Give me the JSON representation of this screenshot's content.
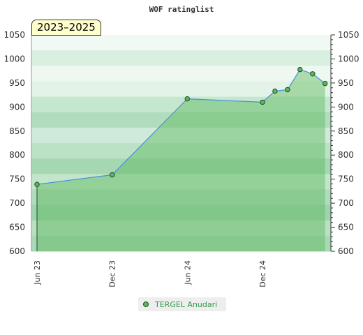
{
  "chart_data": {
    "type": "area",
    "title": "WOF ratinglist",
    "period_label": "2023–2025",
    "ylim": [
      600,
      1050
    ],
    "yticks": [
      "600",
      "650",
      "700",
      "750",
      "800",
      "850",
      "900",
      "950",
      "1000",
      "1050"
    ],
    "xticks": [
      "Jun 23",
      "Dec 23",
      "Jun 24",
      "Dec 24"
    ],
    "xtick_dates": [
      "2023-06",
      "2023-12",
      "2024-06",
      "2024-12"
    ],
    "series": [
      {
        "name": "TERGEL Anudari",
        "x": [
          "2023-06",
          "2023-12",
          "2024-06",
          "2024-12",
          "2025-01",
          "2025-02",
          "2025-03",
          "2025-04",
          "2025-05"
        ],
        "values": [
          739,
          759,
          917,
          910,
          933,
          936,
          978,
          969,
          949
        ]
      }
    ],
    "legend_position": "bottom",
    "colors": {
      "fill": "#5cb85c",
      "line": "#4c8fd6",
      "marker": "#5cb85c",
      "legend_text": "#2e9b47"
    }
  }
}
